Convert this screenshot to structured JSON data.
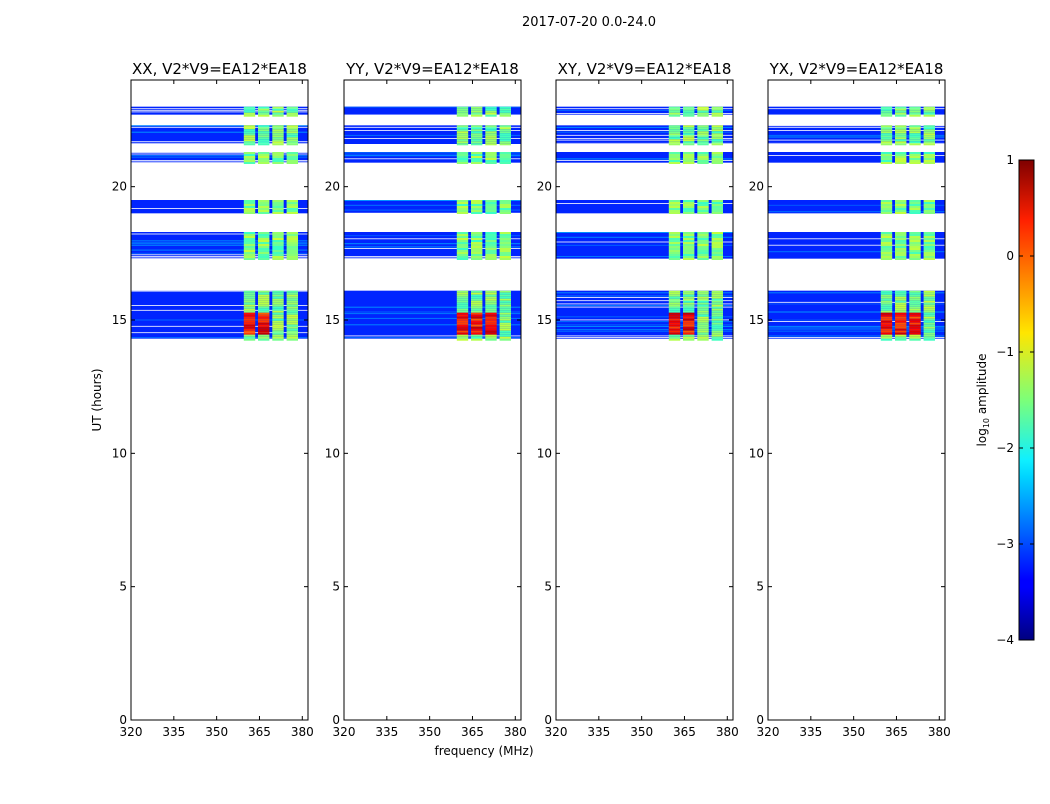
{
  "chart_data": {
    "type": "heatmap",
    "suptitle": "2017-07-20 0.0-24.0",
    "xlabel": "frequency (MHz)",
    "ylabel": "UT (hours)",
    "xlim": [
      320,
      382
    ],
    "ylim": [
      0,
      24
    ],
    "xticks": [
      320,
      335,
      350,
      365,
      380
    ],
    "yticks": [
      0,
      5,
      10,
      15,
      20
    ],
    "panels": [
      {
        "title": "XX, V2*V9=EA12*EA18"
      },
      {
        "title": "YY, V2*V9=EA12*EA18"
      },
      {
        "title": "XY, V2*V9=EA12*EA18"
      },
      {
        "title": "YX, V2*V9=EA12*EA18"
      }
    ],
    "colorbar": {
      "label": "log10 amplitude",
      "label_base": "log",
      "label_sub": "10",
      "label_rest": " amplitude",
      "range": [
        -4,
        1
      ],
      "ticks": [
        -4,
        -3,
        -2,
        -1,
        0,
        1
      ],
      "tick_labels": [
        "−4",
        "−3",
        "−2",
        "−1",
        "0",
        "1"
      ],
      "colormap": "jet"
    },
    "data_bands_ut": [
      [
        14.3,
        16.1
      ],
      [
        17.3,
        18.3
      ],
      [
        19.0,
        19.5
      ],
      [
        20.9,
        21.3
      ],
      [
        21.6,
        22.3
      ],
      [
        22.7,
        23.0
      ]
    ],
    "rfi_channels_mhz": [
      [
        359.5,
        363.5
      ],
      [
        364.5,
        368.5
      ],
      [
        369.5,
        373.5
      ],
      [
        374.5,
        378.5
      ]
    ],
    "background_log_amplitude": -3.2,
    "rfi_log_amplitude": -1.5,
    "rfi_peak_log_amplitude": 0.3
  }
}
